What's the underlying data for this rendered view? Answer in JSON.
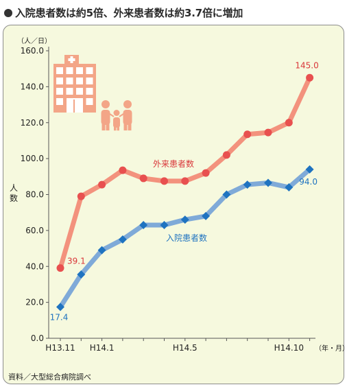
{
  "title": "入院患者数は約5倍、外来患者数は約3.7倍に増加",
  "source": "資料／大型総合病院調べ",
  "icon_names": [
    "hospital-building-icon",
    "family-icon"
  ],
  "colors": {
    "outpatient_line": "#f3927d",
    "outpatient_marker": "#e8504f",
    "outpatient_label": "#d9373a",
    "inpatient_line": "#7faad8",
    "inpatient_marker": "#1f73c0",
    "inpatient_label": "#1f73c0",
    "background": "#f6f9de",
    "icon": "#f3a587"
  },
  "chart_data": {
    "type": "line",
    "y_unit": "（人／日）",
    "ylabel": "人数",
    "x_unit": "（年・月）",
    "ylim": [
      0,
      160
    ],
    "yticks": [
      "0.0",
      "20.0",
      "40.0",
      "60.0",
      "80.0",
      "100.0",
      "120.0",
      "140.0",
      "160.0"
    ],
    "x": [
      "H13.11",
      "H13.12",
      "H14.1",
      "H14.2",
      "H14.3",
      "H14.4",
      "H14.5",
      "H14.6",
      "H14.7",
      "H14.8",
      "H14.9",
      "H14.10",
      "H14.11"
    ],
    "xtick_labels": [
      "H13.11",
      "",
      "H14.1",
      "",
      "",
      "",
      "H14.5",
      "",
      "",
      "",
      "",
      "H14.10",
      ""
    ],
    "grid": false,
    "series": [
      {
        "name": "外来患者数",
        "values": [
          39.1,
          79,
          85.5,
          93.5,
          89,
          87.5,
          87.5,
          92,
          102,
          113.5,
          114.5,
          120,
          145.0
        ],
        "data_labels": {
          "0": "39.1",
          "12": "145.0"
        }
      },
      {
        "name": "入院患者数",
        "values": [
          17.4,
          35.5,
          49,
          55,
          63,
          63,
          66,
          68,
          80,
          85.5,
          86.5,
          84,
          94.0
        ],
        "data_labels": {
          "0": "17.4",
          "12": "94.0"
        }
      }
    ]
  }
}
